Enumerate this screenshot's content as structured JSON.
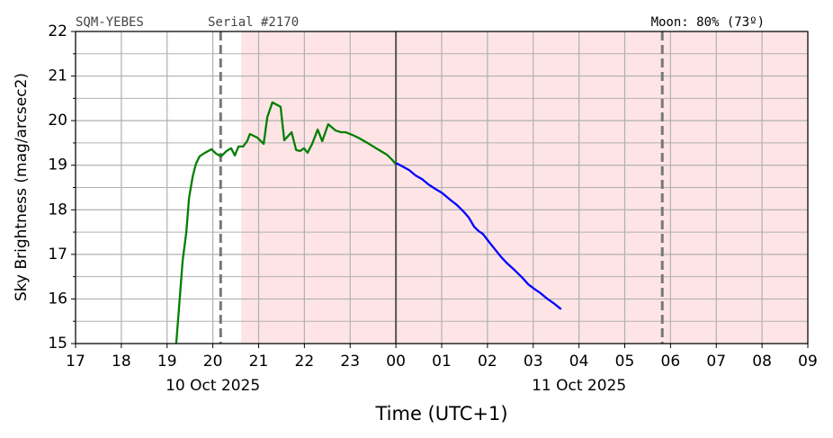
{
  "chart_data": {
    "type": "line",
    "header_left": "SQM-YEBES",
    "header_serial": "Serial #2170",
    "header_moon": "Moon: 80% (73º)",
    "ylabel": "Sky Brightness (mag/arcsec2)",
    "xlabel": "Time (UTC+1)",
    "xlim": [
      17,
      33
    ],
    "ylim": [
      15,
      22
    ],
    "xticks": [
      17,
      18,
      19,
      20,
      21,
      22,
      23,
      {
        "value": 24,
        "label": "00"
      },
      {
        "value": 25,
        "label": "01"
      },
      {
        "value": 26,
        "label": "02"
      },
      {
        "value": 27,
        "label": "03"
      },
      {
        "value": 28,
        "label": "04"
      },
      {
        "value": 29,
        "label": "05"
      },
      {
        "value": 30,
        "label": "06"
      },
      {
        "value": 31,
        "label": "07"
      },
      {
        "value": 32,
        "label": "08"
      },
      {
        "value": 33,
        "label": "09"
      }
    ],
    "date_labels": [
      {
        "value": 20,
        "label": "10 Oct 2025"
      },
      {
        "value": 28,
        "label": "11 Oct 2025"
      }
    ],
    "yticks": [
      15,
      16,
      17,
      18,
      19,
      20,
      21,
      22
    ],
    "yminorticks": [
      15.5,
      16.5,
      17.5,
      18.5,
      19.5,
      20.5,
      21.5
    ],
    "grid": true,
    "shaded_regions": [
      {
        "start": 20.62,
        "end": 33,
        "color": "#ffe4e6"
      }
    ],
    "vlines": [
      {
        "value": 20.17,
        "style": "dashed",
        "color": "#777777"
      },
      {
        "value": 24,
        "style": "solid",
        "color": "#555555"
      },
      {
        "value": 29.82,
        "style": "dashed",
        "color": "#777777"
      }
    ],
    "series": [
      {
        "color": "#008000",
        "x": [
          19.2,
          19.34,
          19.42,
          19.48,
          19.56,
          19.63,
          19.71,
          19.83,
          19.97,
          20.07,
          20.18,
          20.3,
          20.4,
          20.48,
          20.56,
          20.66,
          20.75,
          20.81,
          20.97,
          21.11,
          21.19,
          21.3,
          21.48,
          21.56,
          21.72,
          21.82,
          21.91,
          21.99,
          22.07,
          22.17,
          22.29,
          22.39,
          22.52,
          22.68,
          22.8,
          22.9,
          23.05,
          23.21,
          23.41,
          23.6,
          23.8,
          23.92,
          24.0
        ],
        "values": [
          15.0,
          16.86,
          17.5,
          18.27,
          18.75,
          19.03,
          19.2,
          19.28,
          19.36,
          19.26,
          19.2,
          19.32,
          19.38,
          19.22,
          19.42,
          19.42,
          19.54,
          19.7,
          19.62,
          19.48,
          20.08,
          20.41,
          20.31,
          19.56,
          19.74,
          19.34,
          19.32,
          19.38,
          19.28,
          19.48,
          19.8,
          19.54,
          19.92,
          19.78,
          19.74,
          19.74,
          19.68,
          19.6,
          19.48,
          19.36,
          19.24,
          19.12,
          19.02
        ]
      },
      {
        "color": "#0000ff",
        "x": [
          24.0,
          24.15,
          24.29,
          24.43,
          24.57,
          24.71,
          24.86,
          25.02,
          25.18,
          25.33,
          25.47,
          25.59,
          25.71,
          25.81,
          25.9,
          26.02,
          26.16,
          26.3,
          26.43,
          26.59,
          26.75,
          26.89,
          27.02,
          27.16,
          27.3,
          27.44,
          27.61
        ],
        "values": [
          19.05,
          18.97,
          18.89,
          18.77,
          18.69,
          18.57,
          18.47,
          18.37,
          18.23,
          18.11,
          17.97,
          17.83,
          17.62,
          17.52,
          17.46,
          17.3,
          17.12,
          16.94,
          16.8,
          16.65,
          16.49,
          16.33,
          16.23,
          16.13,
          16.01,
          15.91,
          15.77
        ]
      }
    ]
  }
}
